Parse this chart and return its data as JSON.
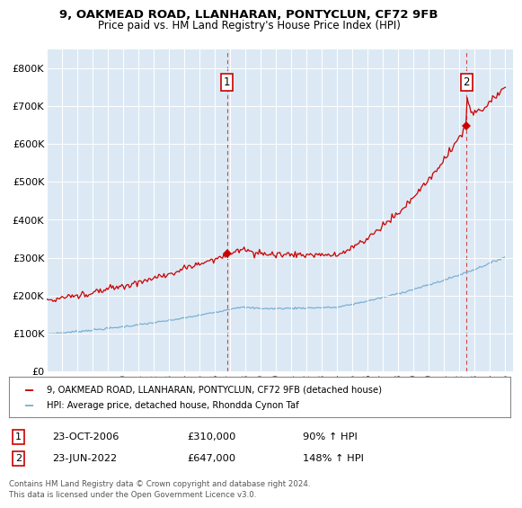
{
  "title_line1": "9, OAKMEAD ROAD, LLANHARAN, PONTYCLUN, CF72 9FB",
  "title_line2": "Price paid vs. HM Land Registry's House Price Index (HPI)",
  "background_color": "#dce9f5",
  "sale1_date": "23-OCT-2006",
  "sale1_price": 310000,
  "sale2_date": "23-JUN-2022",
  "sale2_price": 647000,
  "legend_line1": "9, OAKMEAD ROAD, LLANHARAN, PONTYCLUN, CF72 9FB (detached house)",
  "legend_line2": "HPI: Average price, detached house, Rhondda Cynon Taf",
  "footnote": "Contains HM Land Registry data © Crown copyright and database right 2024.\nThis data is licensed under the Open Government Licence v3.0.",
  "red_color": "#cc0000",
  "blue_color": "#7ab0d4",
  "ylim_max": 850000,
  "yticks": [
    0,
    100000,
    200000,
    300000,
    400000,
    500000,
    600000,
    700000,
    800000
  ],
  "ytick_labels": [
    "£0",
    "£100K",
    "£200K",
    "£300K",
    "£400K",
    "£500K",
    "£600K",
    "£700K",
    "£800K"
  ],
  "year_start": 1995,
  "year_end": 2025,
  "row1_num": "1",
  "row1_date": "23-OCT-2006",
  "row1_price": "£310,000",
  "row1_pct": "90% ↑ HPI",
  "row2_num": "2",
  "row2_date": "23-JUN-2022",
  "row2_price": "£647,000",
  "row2_pct": "148% ↑ HPI"
}
